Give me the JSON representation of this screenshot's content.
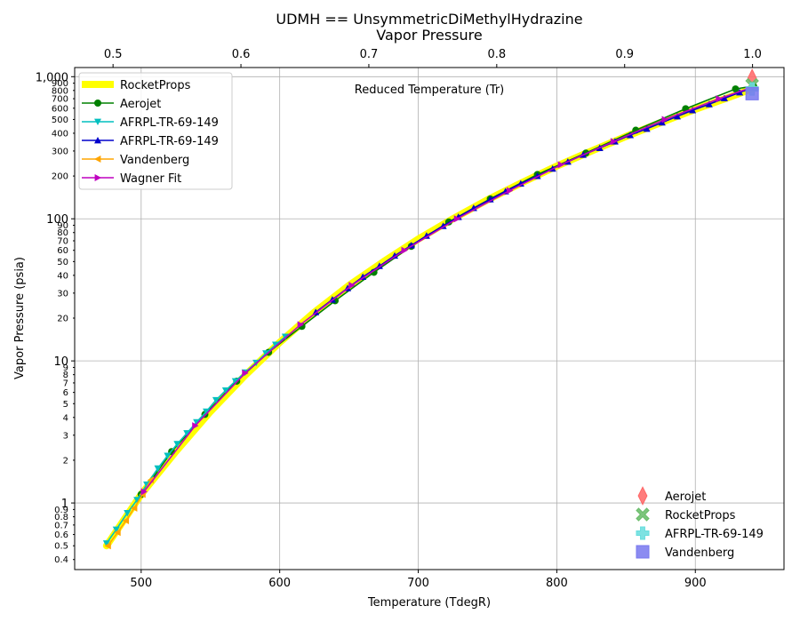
{
  "chart_data": {
    "type": "line",
    "title": "UDMH == UnsymmetricDiMethylHydrazine",
    "subtitle": "Vapor Pressure",
    "xlabel": "Temperature (TdegR)",
    "ylabel": "Vapor Pressure (psia)",
    "top_axis_label": "Reduced Temperature (Tr)",
    "x_scale": "linear",
    "y_scale": "log",
    "xlim": [
      452,
      964
    ],
    "ylim": [
      0.34,
      1160
    ],
    "top_xlim": [
      0.47,
      1.0246
    ],
    "x_ticks": [
      500,
      600,
      700,
      800,
      900
    ],
    "top_ticks": [
      0.5,
      0.6,
      0.7,
      0.8,
      0.9,
      1.0
    ],
    "top_tick_labels": [
      "0.5",
      "0.6",
      "0.7",
      "0.8",
      "0.9",
      "1.0"
    ],
    "y_major_ticks": [
      {
        "value": 1,
        "label": "1"
      },
      {
        "value": 10,
        "label": "10"
      },
      {
        "value": 100,
        "label": "100"
      },
      {
        "value": 1000,
        "label": "1,000"
      }
    ],
    "y_minor_ticks": [
      {
        "value": 0.4,
        "label": "0.4"
      },
      {
        "value": 0.5,
        "label": "0.5"
      },
      {
        "value": 0.6,
        "label": "0.6"
      },
      {
        "value": 0.7,
        "label": "0.7"
      },
      {
        "value": 0.8,
        "label": "0.8"
      },
      {
        "value": 0.9,
        "label": "0.9"
      },
      {
        "value": 2,
        "label": "2"
      },
      {
        "value": 3,
        "label": "3"
      },
      {
        "value": 4,
        "label": "4"
      },
      {
        "value": 5,
        "label": "5"
      },
      {
        "value": 6,
        "label": "6"
      },
      {
        "value": 7,
        "label": "7"
      },
      {
        "value": 8,
        "label": "8"
      },
      {
        "value": 9,
        "label": "9"
      },
      {
        "value": 20,
        "label": "20"
      },
      {
        "value": 30,
        "label": "30"
      },
      {
        "value": 40,
        "label": "40"
      },
      {
        "value": 50,
        "label": "50"
      },
      {
        "value": 60,
        "label": "60"
      },
      {
        "value": 70,
        "label": "70"
      },
      {
        "value": 80,
        "label": "80"
      },
      {
        "value": 90,
        "label": "90"
      },
      {
        "value": 200,
        "label": "200"
      },
      {
        "value": 300,
        "label": "300"
      },
      {
        "value": 400,
        "label": "400"
      },
      {
        "value": 500,
        "label": "500"
      },
      {
        "value": 600,
        "label": "600"
      },
      {
        "value": 700,
        "label": "700"
      },
      {
        "value": 800,
        "label": "800"
      },
      {
        "value": 900,
        "label": "900"
      }
    ],
    "grid": true,
    "legend_position": "top-left",
    "legend2_position": "bottom-right",
    "series": [
      {
        "name": "RocketProps",
        "color": "#ffff00",
        "style": "band",
        "x": [
          475,
          500,
          525,
          550,
          575,
          600,
          625,
          650,
          675,
          700,
          725,
          750,
          775,
          800,
          825,
          850,
          875,
          900,
          925,
          942
        ],
        "y": [
          0.5,
          1.15,
          2.3,
          4.4,
          7.9,
          13.5,
          22,
          34,
          50,
          72,
          100,
          136,
          180,
          235,
          300,
          380,
          475,
          590,
          720,
          830
        ]
      },
      {
        "name": "Aerojet",
        "color": "#008000",
        "marker": "circle",
        "x": [
          500,
          522,
          546,
          569,
          592,
          616,
          640,
          668,
          695,
          722,
          752,
          786,
          821,
          857,
          893,
          929,
          942
        ],
        "y": [
          1.15,
          2.3,
          4.2,
          7.2,
          11.5,
          17.5,
          26.5,
          42,
          64,
          95,
          138,
          205,
          290,
          420,
          595,
          820,
          860
        ]
      },
      {
        "name": "AFRPL-TR-69-149",
        "color": "#00bfbf",
        "marker": "triangle-down",
        "x": [
          475,
          482,
          490,
          497,
          504,
          512,
          519,
          526,
          533,
          540,
          547,
          554,
          561,
          568,
          575,
          583,
          590,
          597,
          604
        ],
        "y": [
          0.52,
          0.65,
          0.85,
          1.05,
          1.35,
          1.75,
          2.15,
          2.6,
          3.1,
          3.7,
          4.4,
          5.3,
          6.2,
          7.2,
          8.3,
          9.7,
          11.3,
          13,
          14.8
        ]
      },
      {
        "name": "AFRPL-TR-69-149",
        "color": "#0000cc",
        "marker": "triangle-up",
        "x": [
          626,
          638,
          649,
          660,
          672,
          683,
          695,
          706,
          718,
          729,
          740,
          752,
          763,
          774,
          786,
          797,
          808,
          819,
          831,
          842,
          853,
          865,
          876,
          887,
          898,
          910,
          921,
          932,
          942
        ],
        "y": [
          22,
          27,
          32.5,
          39,
          46.5,
          55,
          65,
          76,
          89,
          103,
          119,
          137,
          156,
          177,
          200,
          225,
          252,
          282,
          315,
          350,
          388,
          430,
          476,
          526,
          580,
          640,
          705,
          775,
          840
        ]
      },
      {
        "name": "Vandenberg",
        "color": "#ffa500",
        "marker": "triangle-left",
        "x": [
          476,
          483,
          489,
          495,
          501,
          507
        ],
        "y": [
          0.5,
          0.62,
          0.75,
          0.92,
          1.15,
          1.45
        ]
      },
      {
        "name": "Wagner Fit",
        "color": "#bf00bf",
        "marker": "triangle-right",
        "x": [
          502,
          539,
          575,
          615,
          652,
          690,
          728,
          766,
          803,
          841,
          878,
          917,
          942
        ],
        "y": [
          1.2,
          3.5,
          8.2,
          18,
          34,
          60,
          100,
          158,
          240,
          350,
          500,
          700,
          850
        ]
      }
    ],
    "critical_points": [
      {
        "name": "Aerojet",
        "color": "#ff6666",
        "marker": "thin-diamond",
        "x": 941,
        "y": 975
      },
      {
        "name": "RocketProps",
        "color": "#66bb66",
        "marker": "x-filled",
        "x": 941,
        "y": 875
      },
      {
        "name": "AFRPL-TR-69-149",
        "color": "#66dddd",
        "marker": "plus-filled",
        "x": 941,
        "y": 820
      },
      {
        "name": "Vandenberg",
        "color": "#7777ee",
        "marker": "square",
        "x": 941,
        "y": 760
      }
    ]
  }
}
